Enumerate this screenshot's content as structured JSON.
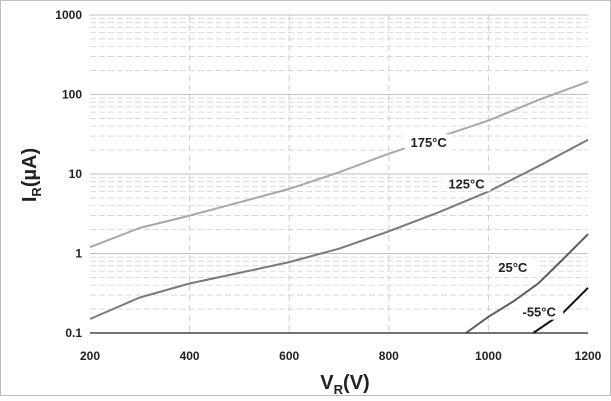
{
  "chart_data": {
    "type": "line",
    "title": "",
    "xlabel": {
      "main": "V",
      "sub": "R",
      "unit": "(V)"
    },
    "ylabel": {
      "main": "I",
      "sub": "R",
      "unit": "(µA)"
    },
    "x_axis": {
      "range": [
        200,
        1200
      ],
      "ticks": [
        200,
        400,
        600,
        800,
        1000,
        1200
      ],
      "tick_labels": [
        "200",
        "400",
        "600",
        "800",
        "1000",
        "1200"
      ]
    },
    "y_axis": {
      "scale": "log",
      "range": [
        0.1,
        1000
      ],
      "ticks": [
        0.1,
        1,
        10,
        100,
        1000
      ],
      "tick_labels": [
        "0.1",
        "1",
        "10",
        "100",
        "1000"
      ]
    },
    "grid": true,
    "series": [
      {
        "name": "175°C",
        "color": "#a8a8a8",
        "x": [
          200,
          300,
          400,
          500,
          600,
          700,
          800,
          900,
          1000,
          1100,
          1200
        ],
        "y": [
          1.2,
          2.1,
          3.0,
          4.4,
          6.5,
          10.5,
          18,
          29,
          47,
          85,
          145
        ],
        "label_at": [
          880,
          23
        ]
      },
      {
        "name": "125°C",
        "color": "#7a7a7a",
        "x": [
          200,
          300,
          400,
          500,
          600,
          700,
          800,
          900,
          1000,
          1100,
          1200
        ],
        "y": [
          0.15,
          0.28,
          0.42,
          0.57,
          0.78,
          1.15,
          1.9,
          3.3,
          6.0,
          12.5,
          27
        ],
        "label_at": [
          956,
          7
        ]
      },
      {
        "name": "25°C",
        "color": "#5c5c5c",
        "x": [
          955,
          1000,
          1050,
          1100,
          1150,
          1200
        ],
        "y": [
          0.1,
          0.16,
          0.25,
          0.42,
          0.85,
          1.75
        ],
        "label_at": [
          1049,
          0.62
        ]
      },
      {
        "name": "-55°C",
        "color": "#111111",
        "x": [
          1090,
          1150,
          1200
        ],
        "y": [
          0.1,
          0.18,
          0.37
        ],
        "label_at": [
          1102,
          0.17
        ]
      }
    ]
  }
}
